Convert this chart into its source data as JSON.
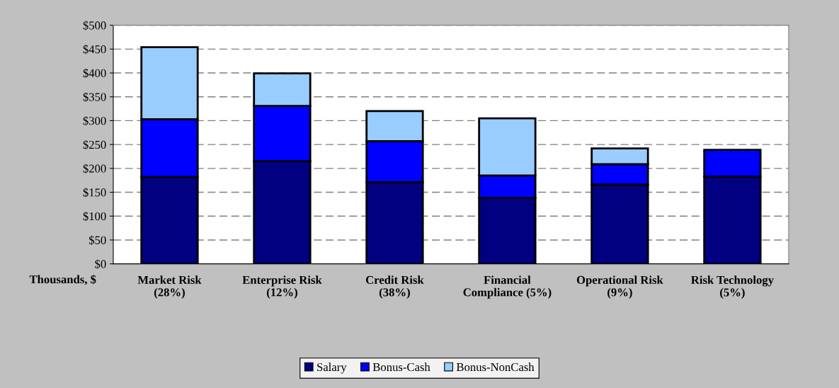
{
  "chart_data": {
    "type": "bar",
    "stacked": true,
    "categories": [
      "Market Risk\n(28%)",
      "Enterprise Risk\n(12%)",
      "Credit Risk\n(38%)",
      "Financial\nCompliance (5%)",
      "Operational Risk\n(9%)",
      "Risk Technology\n(5%)"
    ],
    "series": [
      {
        "name": "Salary",
        "color": "#000080",
        "values": [
          182,
          215,
          171,
          138,
          166,
          183
        ]
      },
      {
        "name": "Bonus-Cash",
        "color": "#0000ff",
        "values": [
          121,
          116,
          86,
          47,
          43,
          56
        ]
      },
      {
        "name": "Bonus-NonCash",
        "color": "#99ccff",
        "values": [
          151,
          68,
          63,
          120,
          33,
          null
        ]
      }
    ],
    "ylim": [
      0,
      500
    ],
    "yticks": [
      {
        "value": 0,
        "label": "$0"
      },
      {
        "value": 50,
        "label": "$50"
      },
      {
        "value": 100,
        "label": "$100"
      },
      {
        "value": 150,
        "label": "$150"
      },
      {
        "value": 200,
        "label": "$200"
      },
      {
        "value": 250,
        "label": "$250"
      },
      {
        "value": 300,
        "label": "$300"
      },
      {
        "value": 350,
        "label": "$350"
      },
      {
        "value": 400,
        "label": "$400"
      },
      {
        "value": 450,
        "label": "$450"
      },
      {
        "value": 500,
        "label": "$500"
      }
    ],
    "grid": "y",
    "legend": "bottom",
    "annotations": [
      "Thousands, $"
    ]
  }
}
